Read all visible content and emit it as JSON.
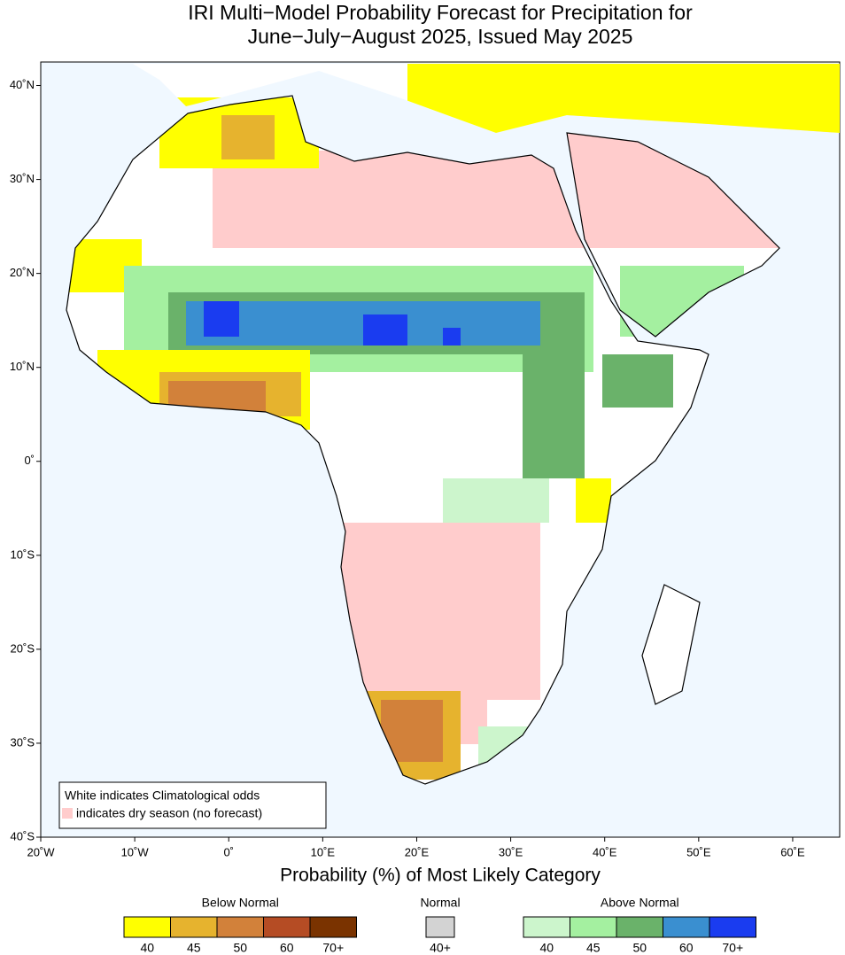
{
  "map": {
    "title": [
      "IRI Multi−Model Probability Forecast for Precipitation for",
      "June−July−August 2025, Issued May 2025"
    ],
    "xlim": [
      -20,
      65
    ],
    "ylim": [
      -40,
      42.5
    ],
    "xticks": [
      {
        "value": -20,
        "label": "20˚W"
      },
      {
        "value": -10,
        "label": "10˚W"
      },
      {
        "value": 0,
        "label": "0˚"
      },
      {
        "value": 10,
        "label": "10˚E"
      },
      {
        "value": 20,
        "label": "20˚E"
      },
      {
        "value": 30,
        "label": "30˚E"
      },
      {
        "value": 40,
        "label": "40˚E"
      },
      {
        "value": 50,
        "label": "50˚E"
      },
      {
        "value": 60,
        "label": "60˚E"
      }
    ],
    "yticks": [
      {
        "value": 40,
        "label": "40˚N"
      },
      {
        "value": 30,
        "label": "30˚N"
      },
      {
        "value": 20,
        "label": "20˚N"
      },
      {
        "value": 10,
        "label": "10˚N"
      },
      {
        "value": 0,
        "label": "0˚"
      },
      {
        "value": -10,
        "label": "10˚S"
      },
      {
        "value": -20,
        "label": "20˚S"
      },
      {
        "value": -30,
        "label": "30˚S"
      },
      {
        "value": -40,
        "label": "40˚S"
      }
    ],
    "xlabel": "Probability (%) of Most Likely Category",
    "note": [
      "White indicates Climatological odds",
      "indicates dry season (no forecast)"
    ],
    "note_color": "#ffcccc"
  },
  "legend": {
    "groups": [
      {
        "name": "Below Normal",
        "items": [
          {
            "label": "40",
            "color": "#ffff00"
          },
          {
            "label": "45",
            "color": "#e6b32e"
          },
          {
            "label": "50",
            "color": "#d2813a"
          },
          {
            "label": "60",
            "color": "#b54c24"
          },
          {
            "label": "70+",
            "color": "#7a3300"
          }
        ]
      },
      {
        "name": "Normal",
        "items": [
          {
            "label": "40+",
            "color": "#d3d3d3"
          }
        ]
      },
      {
        "name": "Above Normal",
        "items": [
          {
            "label": "40",
            "color": "#ccf5cc"
          },
          {
            "label": "45",
            "color": "#a4f0a0"
          },
          {
            "label": "50",
            "color": "#6ab26a"
          },
          {
            "label": "60",
            "color": "#3a8fd0"
          },
          {
            "label": "70+",
            "color": "#1a3cf0"
          }
        ]
      }
    ]
  }
}
